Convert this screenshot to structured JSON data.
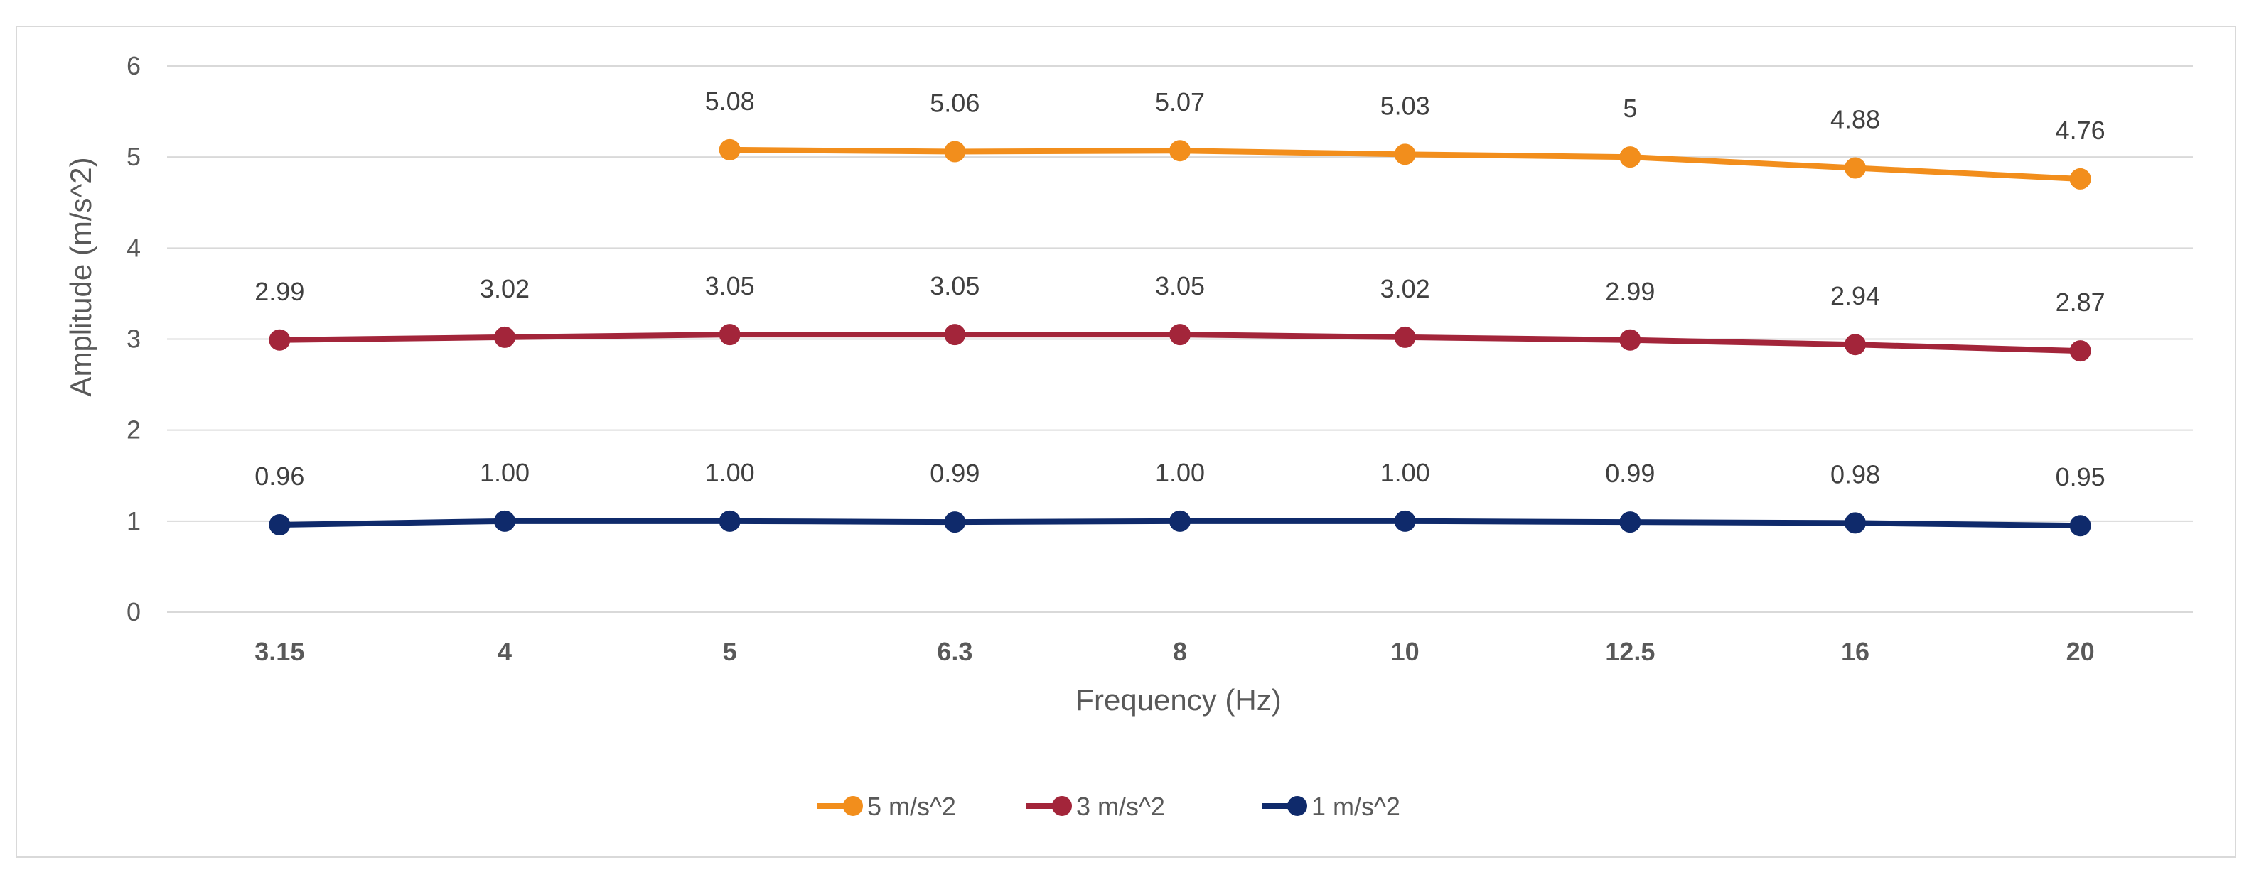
{
  "chart_data": {
    "type": "line",
    "title": "",
    "xlabel": "Frequency (Hz)",
    "ylabel": "Amplitude (m/s^2)",
    "categories": [
      "3.15",
      "4",
      "5",
      "6.3",
      "8",
      "10",
      "12.5",
      "16",
      "20"
    ],
    "ylim": [
      0,
      6
    ],
    "yticks": [
      0,
      1,
      2,
      3,
      4,
      5,
      6
    ],
    "grid": true,
    "legend_position": "bottom",
    "series": [
      {
        "name": "5 m/s^2",
        "color": "#f28e1c",
        "values": [
          null,
          null,
          5.08,
          5.06,
          5.07,
          5.03,
          5,
          4.88,
          4.76
        ],
        "labels": [
          "",
          "",
          "5.08",
          "5.06",
          "5.07",
          "5.03",
          "5",
          "4.88",
          "4.76"
        ]
      },
      {
        "name": "3 m/s^2",
        "color": "#a3253a",
        "values": [
          2.99,
          3.02,
          3.05,
          3.05,
          3.05,
          3.02,
          2.99,
          2.94,
          2.87
        ],
        "labels": [
          "2.99",
          "3.02",
          "3.05",
          "3.05",
          "3.05",
          "3.02",
          "2.99",
          "2.94",
          "2.87"
        ]
      },
      {
        "name": "1 m/s^2",
        "color": "#0f2a6b",
        "values": [
          0.96,
          1.0,
          1.0,
          0.99,
          1.0,
          1.0,
          0.99,
          0.98,
          0.95
        ],
        "labels": [
          "0.96",
          "1.00",
          "1.00",
          "0.99",
          "1.00",
          "1.00",
          "0.99",
          "0.98",
          "0.95"
        ]
      }
    ]
  }
}
